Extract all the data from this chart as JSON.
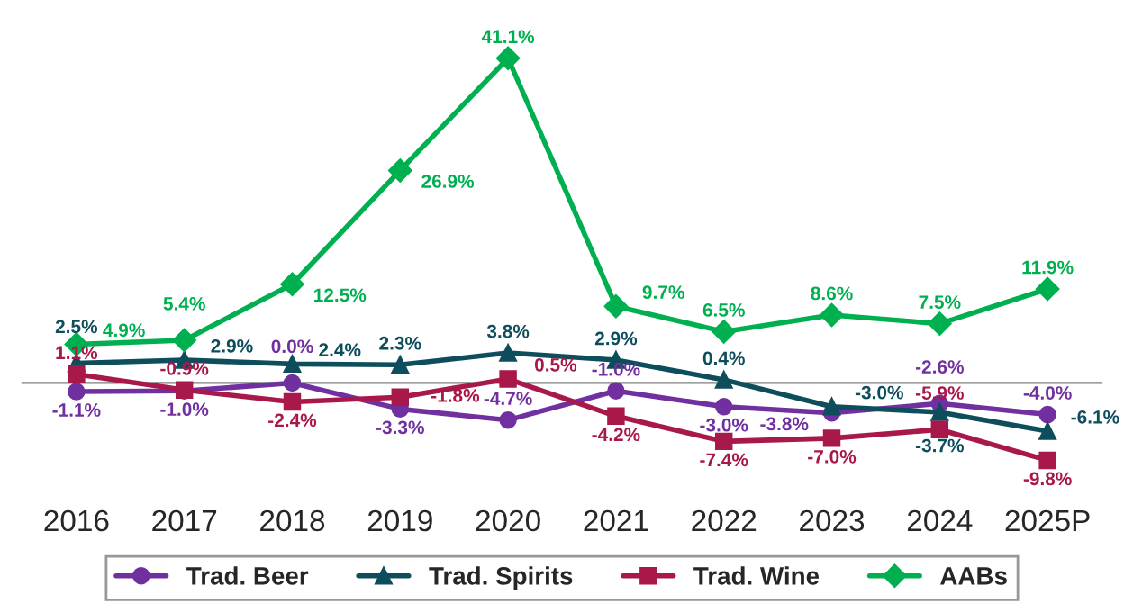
{
  "chart_data": {
    "type": "line",
    "categories": [
      "2016",
      "2017",
      "2018",
      "2019",
      "2020",
      "2021",
      "2022",
      "2023",
      "2024",
      "2025P"
    ],
    "series": [
      {
        "name": "Trad. Beer",
        "color": "#7030a0",
        "marker": "circle",
        "values": [
          -1.1,
          -1.0,
          0.0,
          -3.3,
          -4.7,
          -1.0,
          -3.0,
          -3.8,
          -2.6,
          -4.0
        ],
        "value_labels": [
          "-1.1%",
          "-1.0%",
          "0.0%",
          "-3.3%",
          "-4.7%",
          "-1.0%",
          "-3.0%",
          "-3.8%",
          "-2.6%",
          "-4.0%"
        ]
      },
      {
        "name": "Trad. Spirits",
        "color": "#0e4d5c",
        "marker": "triangle",
        "values": [
          2.5,
          2.9,
          2.4,
          2.3,
          3.8,
          2.9,
          0.4,
          -3.0,
          -3.7,
          -6.1
        ],
        "value_labels": [
          "2.5%",
          "2.9%",
          "2.4%",
          "2.3%",
          "3.8%",
          "2.9%",
          "0.4%",
          "-3.0%",
          "-3.7%",
          "-6.1%"
        ]
      },
      {
        "name": "Trad. Wine",
        "color": "#a8184a",
        "marker": "square",
        "values": [
          1.1,
          -0.9,
          -2.4,
          -1.8,
          0.5,
          -4.2,
          -7.4,
          -7.0,
          -5.9,
          -9.8
        ],
        "value_labels": [
          "1.1%",
          "-0.9%",
          "-2.4%",
          "-1.8%",
          "0.5%",
          "-4.2%",
          "-7.4%",
          "-7.0%",
          "-5.9%",
          "-9.8%"
        ]
      },
      {
        "name": "AABs",
        "color": "#00b050",
        "marker": "diamond",
        "values": [
          4.9,
          5.4,
          12.5,
          26.9,
          41.1,
          9.7,
          6.5,
          8.6,
          7.5,
          11.9
        ],
        "value_labels": [
          "4.9%",
          "5.4%",
          "12.5%",
          "26.9%",
          "41.1%",
          "9.7%",
          "6.5%",
          "8.6%",
          "7.5%",
          "11.9%"
        ]
      }
    ],
    "tick_labels": "x",
    "legend": "bottom",
    "grid": false
  }
}
